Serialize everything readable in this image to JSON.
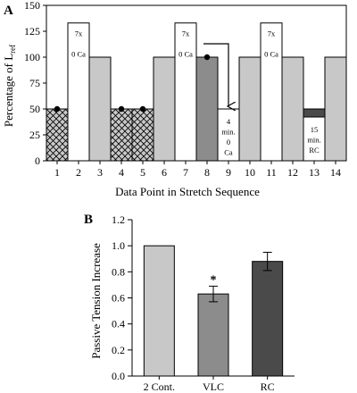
{
  "colors": {
    "light_gray": "#c8c8c8",
    "mid_gray": "#8c8c8c",
    "dark_gray": "#4a4a4a",
    "white": "#ffffff",
    "black": "#000000"
  },
  "chart_data": [
    {
      "panel_label": "A",
      "type": "bar",
      "xlabel": "Data Point in Stretch Sequence",
      "ylabel": "Percentage of L",
      "ylabel_sub": "ref",
      "ylim": [
        0,
        150
      ],
      "yticks": [
        0,
        25,
        50,
        75,
        100,
        125,
        150
      ],
      "categories": [
        "1",
        "2",
        "3",
        "4",
        "5",
        "6",
        "7",
        "8",
        "9",
        "10",
        "11",
        "12",
        "13",
        "14"
      ],
      "bars": [
        {
          "x": "1",
          "value": 50,
          "style": "hatch",
          "marker": true,
          "labels": []
        },
        {
          "x": "2",
          "value": 133,
          "style": "white",
          "marker": false,
          "labels": [
            "7x",
            "0 Ca"
          ]
        },
        {
          "x": "3",
          "value": 100,
          "style": "light",
          "marker": false,
          "labels": []
        },
        {
          "x": "4",
          "value": 50,
          "style": "hatch",
          "marker": true,
          "labels": []
        },
        {
          "x": "5",
          "value": 50,
          "style": "hatch",
          "marker": true,
          "labels": []
        },
        {
          "x": "6",
          "value": 100,
          "style": "light",
          "marker": false,
          "labels": []
        },
        {
          "x": "7",
          "value": 133,
          "style": "white",
          "marker": false,
          "labels": [
            "7x",
            "0 Ca"
          ]
        },
        {
          "x": "8",
          "value": 100,
          "style": "mid",
          "marker": true,
          "labels": []
        },
        {
          "x": "9",
          "value": 50,
          "style": "white",
          "marker": false,
          "labels": [
            "4",
            "min.",
            "0",
            "Ca"
          ]
        },
        {
          "x": "10",
          "value": 100,
          "style": "light",
          "marker": false,
          "labels": []
        },
        {
          "x": "11",
          "value": 133,
          "style": "white",
          "marker": false,
          "labels": [
            "7x",
            "0 Ca"
          ]
        },
        {
          "x": "12",
          "value": 100,
          "style": "light",
          "marker": false,
          "labels": []
        },
        {
          "x": "13",
          "value": 50,
          "style": "dark_top",
          "marker": false,
          "labels": [
            "15",
            "min.",
            "RC"
          ]
        },
        {
          "x": "14",
          "value": 100,
          "style": "light",
          "marker": false,
          "labels": []
        }
      ],
      "annotation": {
        "type": "arrow",
        "from": "8",
        "to": "9"
      },
      "grid": false,
      "legend": "none"
    },
    {
      "panel_label": "B",
      "type": "bar",
      "xlabel": "",
      "ylabel": "Passive Tension Increase",
      "ylim": [
        0,
        1.2
      ],
      "yticks": [
        "0.0",
        "0.2",
        "0.4",
        "0.6",
        "0.8",
        "1.0",
        "1.2"
      ],
      "categories": [
        "2 Cont.",
        "VLC",
        "RC"
      ],
      "values": [
        1.0,
        0.63,
        0.88
      ],
      "errors": [
        0,
        0.06,
        0.07
      ],
      "bar_styles": [
        "light",
        "mid",
        "dark"
      ],
      "significance": [
        "",
        "*",
        ""
      ],
      "grid": false,
      "legend": "none"
    }
  ]
}
